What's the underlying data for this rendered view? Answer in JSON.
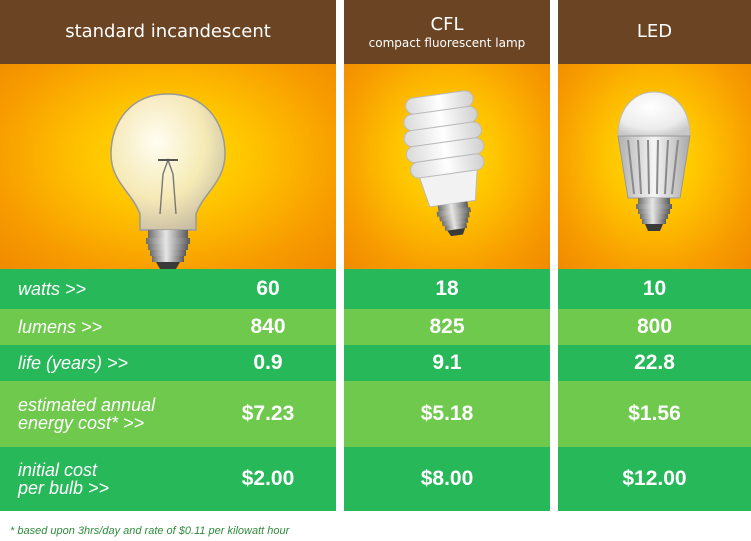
{
  "columns": [
    {
      "title": "standard incandescent",
      "subtitle": "",
      "image_icon": "incandescent-bulb-icon",
      "watts": "60",
      "lumens": "840",
      "life": "0.9",
      "annual_cost": "$7.23",
      "initial_cost": "$2.00"
    },
    {
      "title": "CFL",
      "subtitle": "compact fluorescent lamp",
      "image_icon": "cfl-bulb-icon",
      "watts": "18",
      "lumens": "825",
      "life": "9.1",
      "annual_cost": "$5.18",
      "initial_cost": "$8.00"
    },
    {
      "title": "LED",
      "subtitle": "",
      "image_icon": "led-bulb-icon",
      "watts": "10",
      "lumens": "800",
      "life": "22.8",
      "annual_cost": "$1.56",
      "initial_cost": "$12.00"
    }
  ],
  "row_labels": {
    "watts": "watts >>",
    "lumens": "lumens >>",
    "life": "life (years) >>",
    "annual_cost_1": "estimated annual",
    "annual_cost_2": "energy cost* >>",
    "initial_cost_1": "initial cost",
    "initial_cost_2": "per bulb >>"
  },
  "footnote": "* based upon 3hrs/day and rate of $0.11 per kilowatt hour",
  "colors": {
    "header_brown": "#6b4423",
    "row_dark_green": "#27b85a",
    "row_light_green": "#6ec94c",
    "image_orange": "#f79b00",
    "image_yellow": "#ffe000",
    "footnote_green": "#2e8b3c"
  }
}
